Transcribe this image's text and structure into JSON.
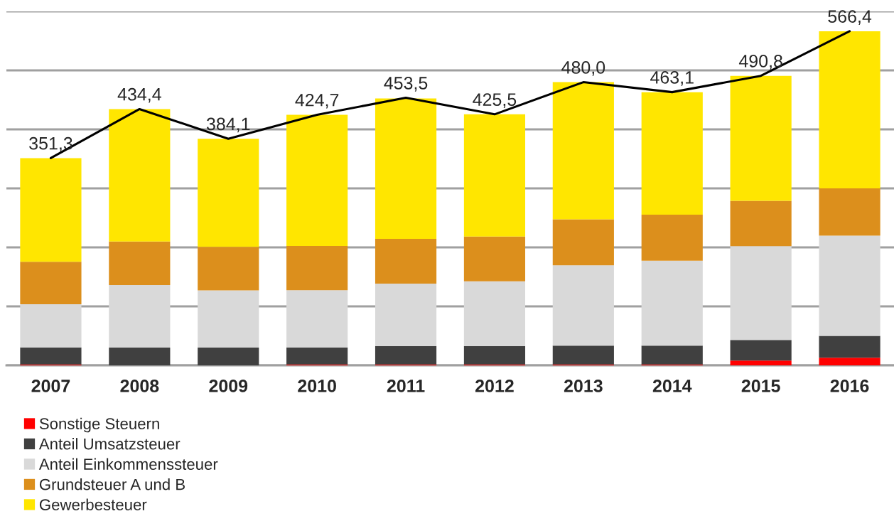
{
  "chart_data": {
    "type": "bar",
    "stacked": true,
    "categories": [
      "2007",
      "2008",
      "2009",
      "2010",
      "2011",
      "2012",
      "2013",
      "2014",
      "2015",
      "2016"
    ],
    "series": [
      {
        "name": "Sonstige Steuern",
        "color": "#ff0000",
        "values": [
          1.5,
          0,
          0,
          1.5,
          1.5,
          1.5,
          1.5,
          1.5,
          8,
          13
        ]
      },
      {
        "name": "Anteil Umsatzsteuer",
        "color": "#404040",
        "values": [
          29,
          30,
          30,
          29,
          31,
          31,
          32,
          32,
          35,
          37
        ]
      },
      {
        "name": "Anteil Einkommenssteuer",
        "color": "#d9d9d9",
        "values": [
          73,
          106,
          97,
          97,
          106,
          110,
          136,
          144,
          159,
          170
        ]
      },
      {
        "name": "Grundsteuer A und B",
        "color": "#dc8f1c",
        "values": [
          72,
          74,
          74,
          75,
          76,
          76,
          78,
          78,
          77,
          80
        ]
      },
      {
        "name": "Gewerbesteuer",
        "color": "#ffe600",
        "values": [
          175.8,
          224.4,
          183.1,
          222.2,
          238,
          207,
          232.5,
          207.6,
          211.8,
          266.4
        ]
      },
      {
        "type": "line",
        "color": "#000000",
        "values": [
          351.3,
          434.4,
          384.1,
          424.7,
          453.5,
          425.5,
          480.0,
          463.1,
          490.8,
          566.4
        ],
        "value_labels": [
          "351,3",
          "434,4",
          "384,1",
          "424,7",
          "453,5",
          "425,5",
          "480,0",
          "463,1",
          "490,8",
          "566,4"
        ]
      }
    ],
    "ylim": [
      0,
      600
    ],
    "yticks": [
      {
        "value": 0,
        "label": null
      },
      {
        "value": 100,
        "label": null
      },
      {
        "value": 200,
        "label": null
      },
      {
        "value": 300,
        "label": null
      },
      {
        "value": 400,
        "label": null
      },
      {
        "value": 500,
        "label": null
      },
      {
        "value": 600,
        "label": null
      }
    ],
    "tick_labels": "x",
    "grid": "y",
    "legend": "bottom left"
  }
}
